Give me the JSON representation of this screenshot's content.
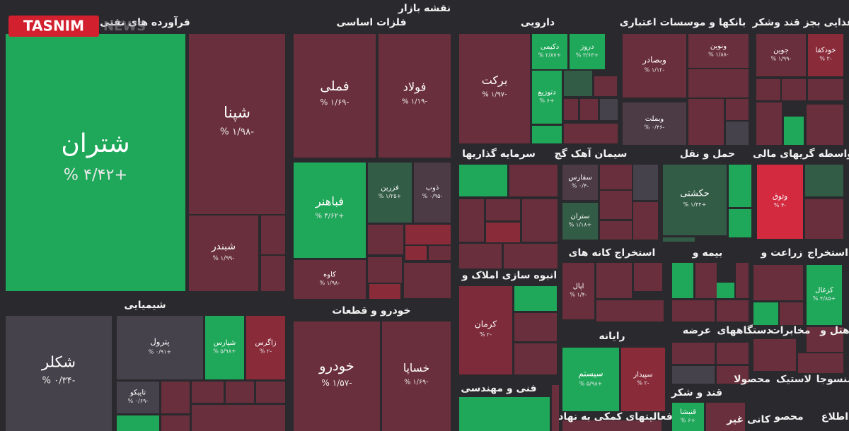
{
  "logo": {
    "name": "TASNIM",
    "sub": "NEWS"
  },
  "title": "نقشه بازار",
  "sectors": [
    "فرآورده های نفتی",
    "فلزات اساسی",
    "دارویی",
    "بانکها و موسسات اعتباری",
    "غذایی بجز قند وشکر",
    "سرمایه گذاریها",
    "سیمان آهک گچ",
    "حمل و نقل",
    "واسطه گریهای مالی",
    "استخراج کانه های",
    "بیمه و",
    "زراعت و",
    "استخراج",
    "انبوه سازی املاک و",
    "شیمیایی",
    "خودرو و قطعات",
    "رایانه",
    "عرضه",
    "دستگاههای",
    "مخابرات",
    "هتل و",
    "منسوجا",
    "لاستیک",
    "محصولا",
    "فنی و مهندسی",
    "قند و شکر",
    "فعالیتهای کمکی به نهاد",
    "کانی غیر",
    "محصو",
    "اطلاع"
  ],
  "tiles": [
    {
      "name": "شتران",
      "change": "+۴/۴۲ %",
      "color": "#1fa85a"
    },
    {
      "name": "شپنا",
      "change": "-۱/۹۸ %",
      "color": "#6a2f3c"
    },
    {
      "name": "شبندر",
      "change": "-۱/۹۹ %",
      "color": "#6a2f3c"
    },
    {
      "name": "فملی",
      "change": "-۱/۶۹ %",
      "color": "#6a2f3c"
    },
    {
      "name": "فولاد",
      "change": "-۱/۱۹ %",
      "color": "#6a2f3c"
    },
    {
      "name": "فباهنر",
      "change": "+۴/۶۲ %",
      "color": "#1fa85a"
    },
    {
      "name": "فزرین",
      "change": "+۱/۲۵ %",
      "color": "#335c47"
    },
    {
      "name": "ذوب",
      "change": "-۰/۹۵ %",
      "color": "#4c3a44"
    },
    {
      "name": "کاوه",
      "change": "-۱/۹۸ %",
      "color": "#6a2f3c"
    },
    {
      "name": "برکت",
      "change": "-۱/۹۷ %",
      "color": "#6a2f3c"
    },
    {
      "name": "دکیمی",
      "change": "+۲/۸۷ %",
      "color": "#1fa85a"
    },
    {
      "name": "دروز",
      "change": "+۳/۶۳ %",
      "color": "#1fa85a"
    },
    {
      "name": "دتوزیع",
      "change": "+۶ %",
      "color": "#1fa85a"
    },
    {
      "name": "وبصادر",
      "change": "-۱/۱۲ %",
      "color": "#6a2f3c"
    },
    {
      "name": "ونوین",
      "change": "-۱/۸۸ %",
      "color": "#6a2f3c"
    },
    {
      "name": "وبملت",
      "change": "-۰/۴۶ %",
      "color": "#4c3a44"
    },
    {
      "name": "جوین",
      "change": "-۱/۹۹ %",
      "color": "#6a2f3c"
    },
    {
      "name": "خودکفا",
      "change": "-۲ %",
      "color": "#8a2b3a"
    },
    {
      "name": "سفارس",
      "change": "-۰/۴ %",
      "color": "#4c3a44"
    },
    {
      "name": "ستران",
      "change": "+۱/۱۸ %",
      "color": "#335c47"
    },
    {
      "name": "حکشتی",
      "change": "+۱/۴۴ %",
      "color": "#335c47"
    },
    {
      "name": "وثوق",
      "change": "-۴ %",
      "color": "#d42a40"
    },
    {
      "name": "اپال",
      "change": "-۱/۴ %",
      "color": "#6a2f3c"
    },
    {
      "name": "کرمان",
      "change": "-۲ %",
      "color": "#7d2b3a"
    },
    {
      "name": "کزغال",
      "change": "+۴/۸۵ %",
      "color": "#1fa85a"
    },
    {
      "name": "سیستم",
      "change": "+۵/۹۸ %",
      "color": "#1fa85a"
    },
    {
      "name": "سپیدار",
      "change": "-۲ %",
      "color": "#8a2b3a"
    },
    {
      "name": "قنبشا",
      "change": "+۶ %",
      "color": "#1fa85a"
    },
    {
      "name": "شکلر",
      "change": "-۰/۳۴ %",
      "color": "#46424b"
    },
    {
      "name": "پترول",
      "change": "+۰/۹۱ %",
      "color": "#46424b"
    },
    {
      "name": "شپارس",
      "change": "+۵/۹۸ %",
      "color": "#1fa85a"
    },
    {
      "name": "زاگرس",
      "change": "-۲ %",
      "color": "#8a2b3a"
    },
    {
      "name": "تاپیکو",
      "change": "-۰/۶۹ %",
      "color": "#46424b"
    },
    {
      "name": "خودرو",
      "change": "-۱/۵۷ %",
      "color": "#6a2f3c"
    },
    {
      "name": "خساپا",
      "change": "-۱/۶۹ %",
      "color": "#6a2f3c"
    }
  ]
}
